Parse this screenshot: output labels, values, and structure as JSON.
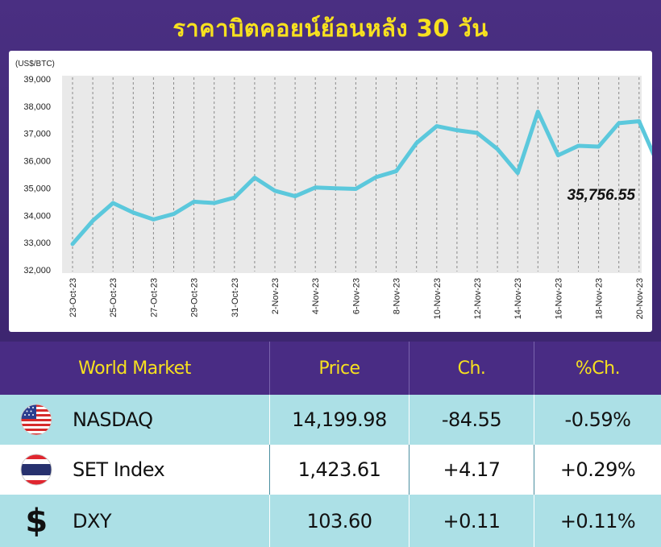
{
  "title": "ราคาบิตคอยน์ย้อนหลัง 30 วัน",
  "chart_data": {
    "type": "line",
    "unit_label": "(US$/BTC)",
    "ylim": [
      32000,
      39000
    ],
    "yticks": [
      "39,000",
      "38,000",
      "37,000",
      "36,000",
      "35,000",
      "34,000",
      "33,000",
      "32,000"
    ],
    "ytick_values": [
      39000,
      38000,
      37000,
      36000,
      35000,
      34000,
      33000,
      32000
    ],
    "xtick_labels": [
      "23-Oct-23",
      "25-Oct-23",
      "27-Oct-23",
      "29-Oct-23",
      "31-Oct-23",
      "2-Nov-23",
      "4-Nov-23",
      "6-Nov-23",
      "8-Nov-23",
      "10-Nov-23",
      "12-Nov-23",
      "14-Nov-23",
      "16-Nov-23",
      "18-Nov-23",
      "20-Nov-23"
    ],
    "grid": "vertical-dashed",
    "line_color": "#5bc8dc",
    "series": [
      {
        "values": [
          32950,
          33800,
          34450,
          34100,
          33850,
          34050,
          34500,
          34450,
          34650,
          35380,
          34900,
          34700,
          35020,
          34990,
          34970,
          35400,
          35620,
          36650,
          37270,
          37120,
          37020,
          36430,
          35550,
          37800,
          36200,
          36550,
          36520,
          37380,
          37450,
          35756.55
        ]
      }
    ],
    "last_value_label": "35,756.55"
  },
  "table": {
    "headers": [
      "World Market",
      "Price",
      "Ch.",
      "%Ch."
    ],
    "rows": [
      {
        "icon": "us-flag-icon",
        "name": "NASDAQ",
        "price": "14,199.98",
        "change": "-84.55",
        "pct": "-0.59%"
      },
      {
        "icon": "thai-flag-icon",
        "name": "SET Index",
        "price": "1,423.61",
        "change": "+4.17",
        "pct": "+0.29%"
      },
      {
        "icon": "dollar-sign-icon",
        "symbol": "$",
        "name": "DXY",
        "price": "103.60",
        "change": "+0.11",
        "pct": "+0.11%"
      }
    ]
  },
  "colors": {
    "header_bg": "#492c84",
    "accent_yellow": "#f7e11f",
    "row_teal": "#ace0e6"
  }
}
